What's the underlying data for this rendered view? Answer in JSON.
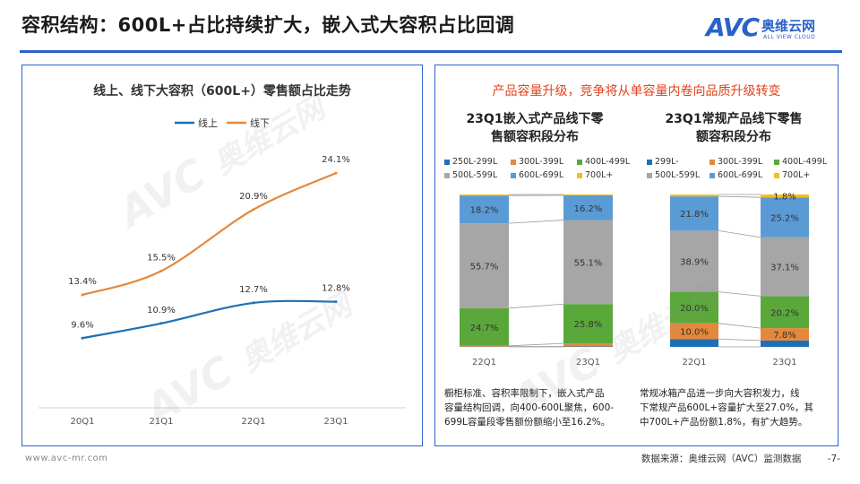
{
  "title": "容积结构：600L+占比持续扩大，嵌入式大容积占比回调",
  "logo": {
    "main": "AVC",
    "cn": "奥维云网",
    "en": "ALL VIEW CLOUD"
  },
  "watermark": {
    "main": "AVC",
    "cn": "奥维云网",
    "en": "ALL VIEW CLOUD"
  },
  "colors": {
    "accent": "#2a63c8",
    "online": "#1f6fb5",
    "offline": "#e5883c",
    "seg_250_299": "#1f6fb5",
    "seg_300_399": "#e5883c",
    "seg_400_499": "#5aa83a",
    "seg_500_599": "#a6a6a6",
    "seg_600_699": "#5b9bd5",
    "seg_700": "#f2c01e"
  },
  "chart_data": [
    {
      "type": "line",
      "title": "线上、线下大容积（600L+）零售额占比走势",
      "categories": [
        "20Q1",
        "21Q1",
        "22Q1",
        "23Q1"
      ],
      "series": [
        {
          "name": "线上",
          "values": [
            9.6,
            10.9,
            12.7,
            12.8
          ],
          "labels": [
            "9.6%",
            "10.9%",
            "12.7%",
            "12.8%"
          ]
        },
        {
          "name": "线下",
          "values": [
            13.4,
            15.5,
            20.9,
            24.1
          ],
          "labels": [
            "13.4%",
            "15.5%",
            "20.9%",
            "24.1%"
          ]
        }
      ]
    },
    {
      "type": "bar",
      "stacked": "percent",
      "title": "23Q1嵌入式产品线下零售额容积段分布",
      "categories": [
        "22Q1",
        "23Q1"
      ],
      "series": [
        {
          "name": "250L-299L",
          "values": [
            0.2,
            0.3
          ]
        },
        {
          "name": "300L-399L",
          "values": [
            0.5,
            2.0
          ]
        },
        {
          "name": "400L-499L",
          "values": [
            24.7,
            25.8
          ]
        },
        {
          "name": "500L-599L",
          "values": [
            55.7,
            55.1
          ]
        },
        {
          "name": "600L-699L",
          "values": [
            18.2,
            16.2
          ]
        },
        {
          "name": "700L+",
          "values": [
            0.7,
            0.6
          ]
        }
      ],
      "labels": {
        "400L-499L": [
          "24.7%",
          "25.8%"
        ],
        "500L-599L": [
          "55.7%",
          "55.1%"
        ],
        "600L-699L": [
          "18.2%",
          "16.2%"
        ]
      },
      "legend": [
        "250L-299L",
        "300L-399L",
        "400L-499L",
        "500L-599L",
        "600L-699L",
        "700L+"
      ],
      "caption": [
        "橱柜标准、容积率限制下，嵌入式产品",
        "容量结构回调，向400-600L聚焦，600-",
        "699L容量段零售额份额缩小至16.2%。"
      ]
    },
    {
      "type": "bar",
      "stacked": "percent",
      "title": "23Q1常规产品线下零售额容积段分布",
      "categories": [
        "22Q1",
        "23Q1"
      ],
      "series": [
        {
          "name": "299L-",
          "values": [
            5.0,
            4.0
          ]
        },
        {
          "name": "300L-399L",
          "values": [
            10.0,
            7.8
          ]
        },
        {
          "name": "400L-499L",
          "values": [
            20.0,
            20.2
          ]
        },
        {
          "name": "500L-599L",
          "values": [
            38.9,
            37.1
          ]
        },
        {
          "name": "600L-699L",
          "values": [
            21.8,
            25.2
          ]
        },
        {
          "name": "700L+",
          "values": [
            1.2,
            1.8
          ]
        }
      ],
      "labels": {
        "300L-399L": [
          "10.0%",
          "7.8%"
        ],
        "400L-499L": [
          "20.0%",
          "20.2%"
        ],
        "500L-599L": [
          "38.9%",
          "37.1%"
        ],
        "600L-699L": [
          "21.8%",
          "25.2%"
        ],
        "700L+": [
          "",
          "1.8%"
        ]
      },
      "legend": [
        "299L-",
        "300L-399L",
        "400L-499L",
        "500L-599L",
        "600L-699L",
        "700L+"
      ],
      "caption": [
        "常规冰箱产品进一步向大容积发力，线",
        "下常规产品600L+容量扩大至27.0%，其",
        "中700L+产品份额1.8%，有扩大趋势。"
      ]
    }
  ],
  "right_panel": {
    "headline": "产品容量升级，竞争将从单容量内卷向品质升级转变",
    "sub1": [
      "23Q1嵌入式产品线下零",
      "售额容积段分布"
    ],
    "sub2": [
      "23Q1常规产品线下零售",
      "额容积段分布"
    ]
  },
  "footer": {
    "left": "www.avc-mr.com",
    "source": "数据来源：奥维云网（AVC）监测数据",
    "page": "-7-"
  }
}
